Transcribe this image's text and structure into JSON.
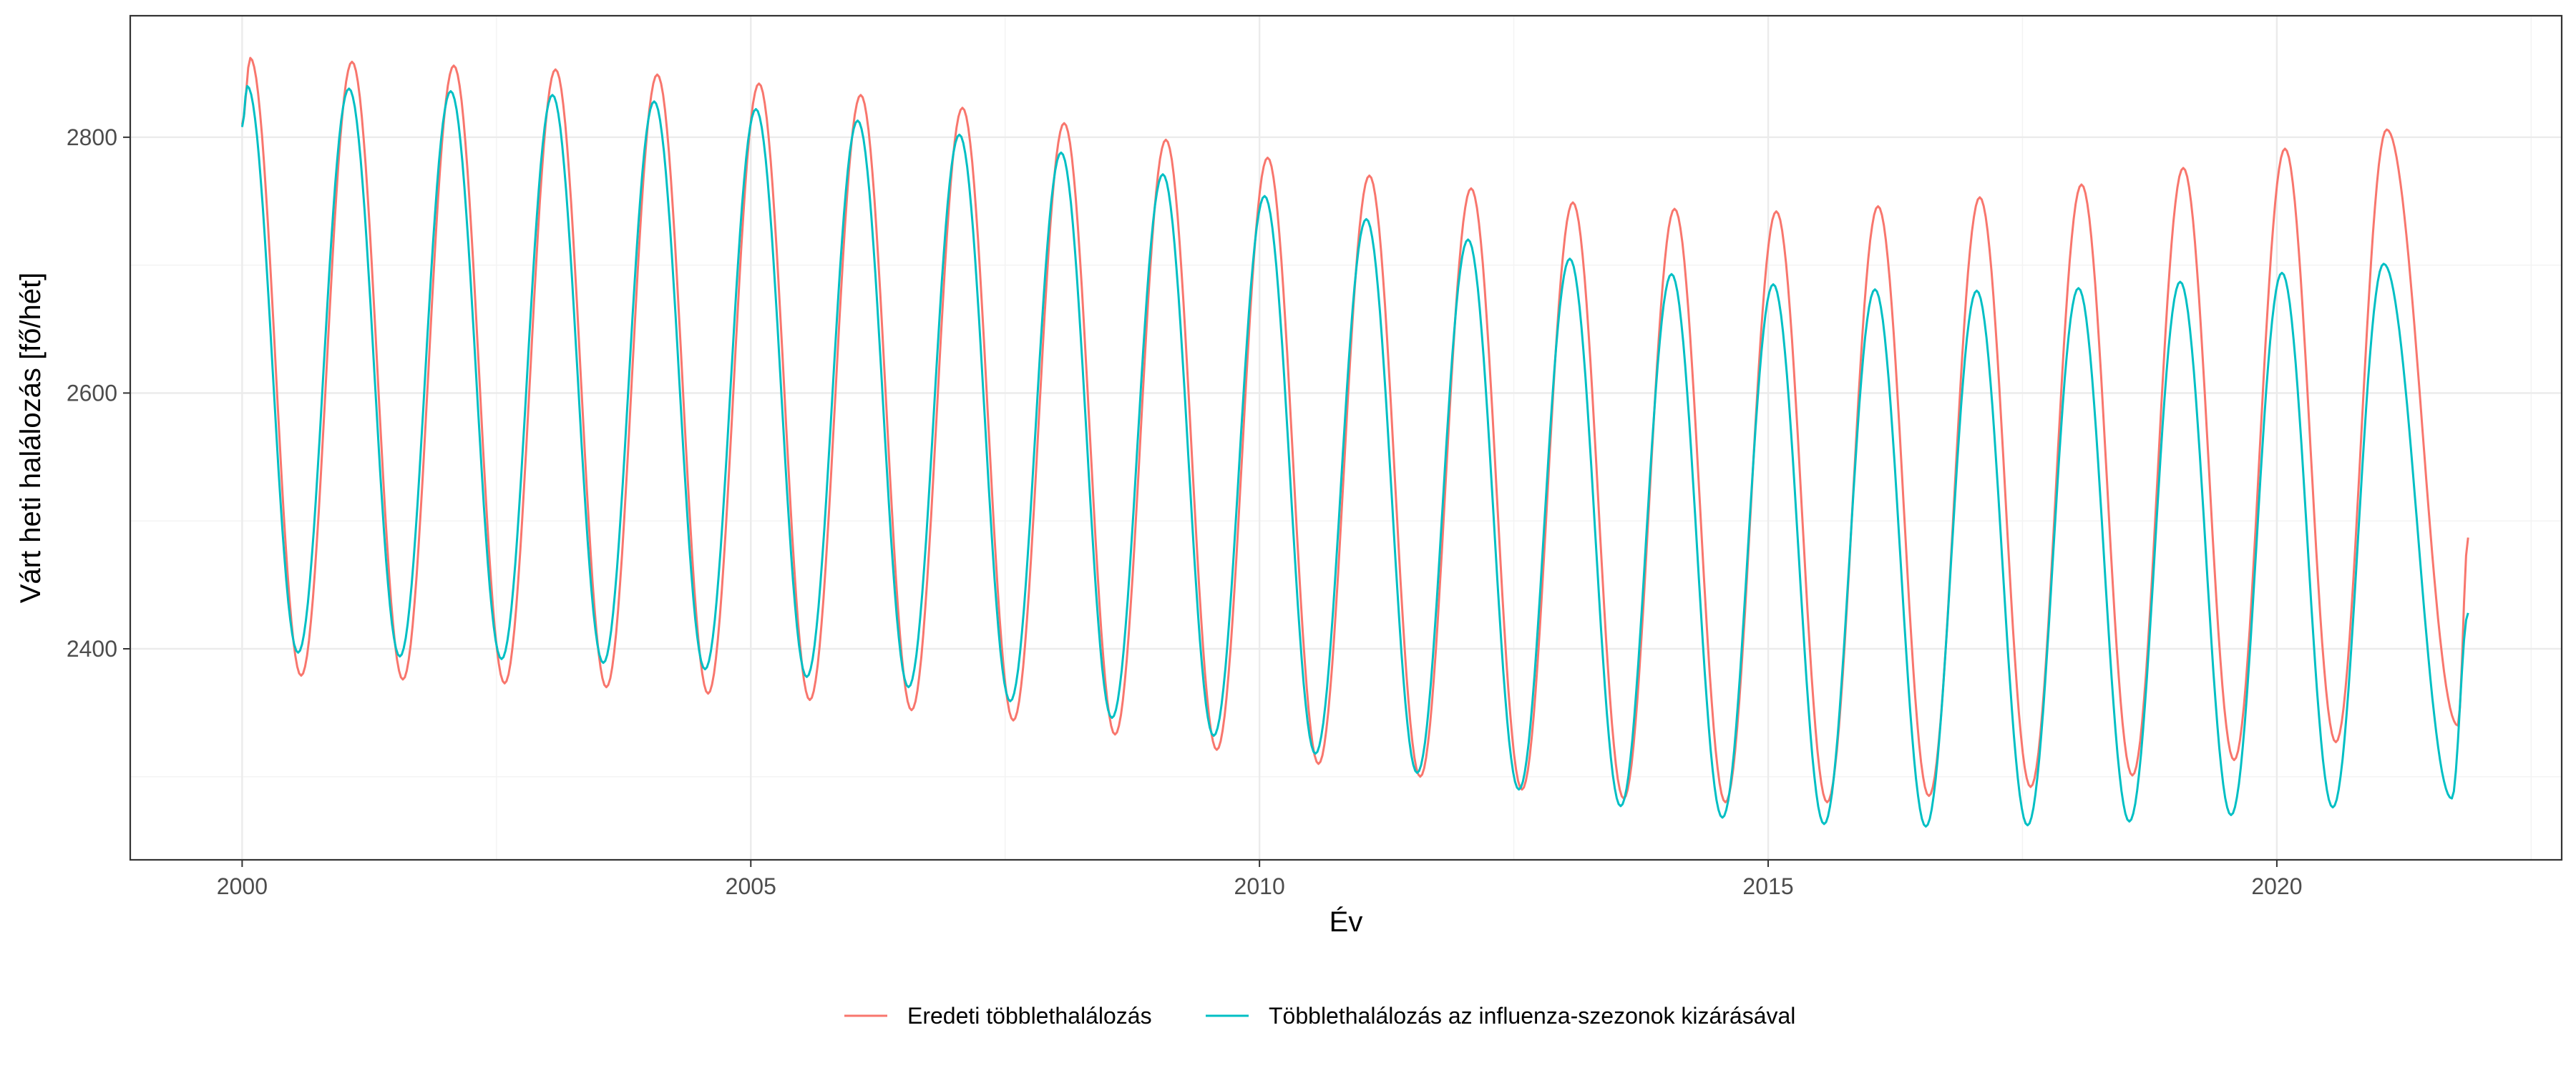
{
  "colors": {
    "eredeti": "#F8766D",
    "influenza": "#00BFC4",
    "grid_major": "#EBEBEB",
    "grid_minor": "#F3F3F3",
    "panel_border": "#333333",
    "tick_text": "#4D4D4D"
  },
  "chart_data": {
    "type": "line",
    "xlabel": "Év",
    "ylabel": "Várt heti halálozás [fő/hét]",
    "xlim": [
      1998.9,
      2022.8
    ],
    "ylim": [
      2235,
      2895
    ],
    "x_ticks": [
      2000,
      2005,
      2010,
      2015,
      2020
    ],
    "x_tick_labels": [
      "2000",
      "2005",
      "2010",
      "2015",
      "2020"
    ],
    "x_minor_ticks": [
      2002.5,
      2007.5,
      2012.5,
      2017.5,
      2022.5
    ],
    "y_ticks": [
      2400,
      2600,
      2800
    ],
    "y_tick_labels": [
      "2400",
      "2600",
      "2800"
    ],
    "y_minor_ticks": [
      2300,
      2500,
      2700
    ],
    "grid": true,
    "legend_position": "bottom",
    "data_note": "",
    "series": [
      {
        "name": "Eredeti többlethalálozás",
        "color": "#F8766D",
        "start_x": 2000.0,
        "start_y": 2810,
        "end_x": 2021.88,
        "end_y": 2487,
        "peaks": [
          [
            2000.08,
            2862
          ],
          [
            2001.08,
            2859
          ],
          [
            2002.08,
            2856
          ],
          [
            2003.08,
            2853
          ],
          [
            2004.08,
            2849
          ],
          [
            2005.08,
            2842
          ],
          [
            2006.08,
            2833
          ],
          [
            2007.08,
            2823
          ],
          [
            2008.08,
            2811
          ],
          [
            2009.08,
            2798
          ],
          [
            2010.08,
            2784
          ],
          [
            2011.08,
            2770
          ],
          [
            2012.08,
            2760
          ],
          [
            2013.08,
            2749
          ],
          [
            2014.08,
            2744
          ],
          [
            2015.08,
            2742
          ],
          [
            2016.08,
            2746
          ],
          [
            2017.08,
            2753
          ],
          [
            2018.08,
            2763
          ],
          [
            2019.08,
            2776
          ],
          [
            2020.08,
            2791
          ],
          [
            2021.08,
            2806
          ]
        ],
        "troughs": [
          [
            2000.58,
            2379
          ],
          [
            2001.58,
            2376
          ],
          [
            2002.58,
            2373
          ],
          [
            2003.58,
            2370
          ],
          [
            2004.58,
            2365
          ],
          [
            2005.58,
            2360
          ],
          [
            2006.58,
            2352
          ],
          [
            2007.58,
            2344
          ],
          [
            2008.58,
            2333
          ],
          [
            2009.58,
            2321
          ],
          [
            2010.58,
            2310
          ],
          [
            2011.58,
            2300
          ],
          [
            2012.58,
            2290
          ],
          [
            2013.58,
            2283
          ],
          [
            2014.58,
            2280
          ],
          [
            2015.58,
            2280
          ],
          [
            2016.58,
            2285
          ],
          [
            2017.58,
            2292
          ],
          [
            2018.58,
            2301
          ],
          [
            2019.58,
            2313
          ],
          [
            2020.58,
            2327
          ],
          [
            2021.78,
            2340
          ]
        ]
      },
      {
        "name": "Többlethalálozás az influenza-szezonok kizárásával",
        "color": "#00BFC4",
        "start_x": 2000.0,
        "start_y": 2808,
        "end_x": 2021.88,
        "end_y": 2428,
        "peaks": [
          [
            2000.05,
            2840
          ],
          [
            2001.05,
            2838
          ],
          [
            2002.05,
            2836
          ],
          [
            2003.05,
            2833
          ],
          [
            2004.05,
            2828
          ],
          [
            2005.05,
            2822
          ],
          [
            2006.05,
            2813
          ],
          [
            2007.05,
            2802
          ],
          [
            2008.05,
            2788
          ],
          [
            2009.05,
            2771
          ],
          [
            2010.05,
            2754
          ],
          [
            2011.05,
            2736
          ],
          [
            2012.05,
            2720
          ],
          [
            2013.05,
            2705
          ],
          [
            2014.05,
            2693
          ],
          [
            2015.05,
            2685
          ],
          [
            2016.05,
            2681
          ],
          [
            2017.05,
            2680
          ],
          [
            2018.05,
            2682
          ],
          [
            2019.05,
            2687
          ],
          [
            2020.05,
            2694
          ],
          [
            2021.05,
            2701
          ]
        ],
        "troughs": [
          [
            2000.55,
            2397
          ],
          [
            2001.55,
            2394
          ],
          [
            2002.55,
            2392
          ],
          [
            2003.55,
            2389
          ],
          [
            2004.55,
            2384
          ],
          [
            2005.55,
            2378
          ],
          [
            2006.55,
            2370
          ],
          [
            2007.55,
            2359
          ],
          [
            2008.55,
            2346
          ],
          [
            2009.55,
            2332
          ],
          [
            2010.55,
            2318
          ],
          [
            2011.55,
            2303
          ],
          [
            2012.55,
            2290
          ],
          [
            2013.55,
            2277
          ],
          [
            2014.55,
            2268
          ],
          [
            2015.55,
            2263
          ],
          [
            2016.55,
            2261
          ],
          [
            2017.55,
            2262
          ],
          [
            2018.55,
            2265
          ],
          [
            2019.55,
            2270
          ],
          [
            2020.55,
            2276
          ],
          [
            2021.72,
            2283
          ]
        ]
      }
    ]
  }
}
